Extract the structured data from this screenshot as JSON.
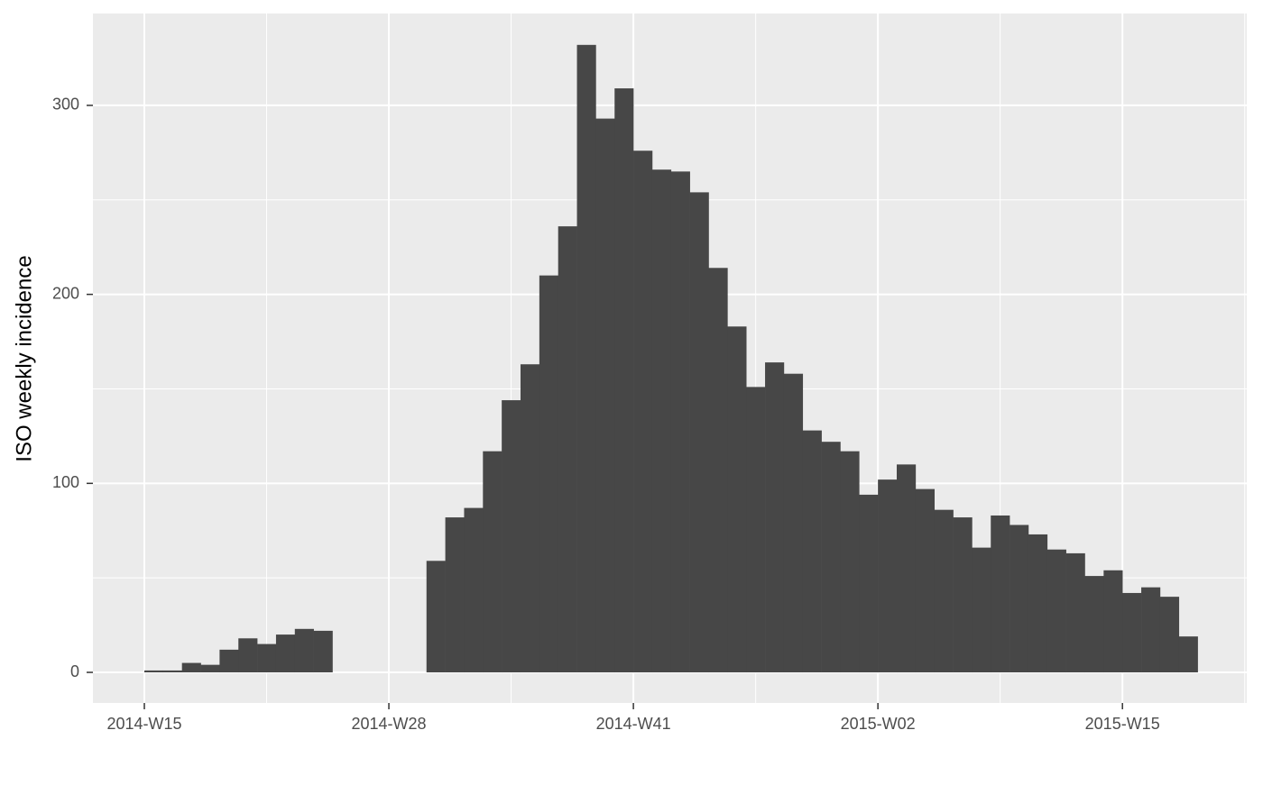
{
  "chart_data": {
    "type": "bar",
    "y_label": "ISO weekly incidence",
    "categories": [
      "2014-W15",
      null,
      null,
      null,
      null,
      null,
      null,
      null,
      null,
      null,
      null,
      null,
      null,
      "2014-W28",
      null,
      null,
      null,
      null,
      null,
      null,
      null,
      null,
      null,
      null,
      null,
      null,
      "2014-W41",
      null,
      null,
      null,
      null,
      null,
      null,
      null,
      null,
      null,
      null,
      null,
      null,
      "2015-W02",
      null,
      null,
      null,
      null,
      null,
      null,
      null,
      null,
      null,
      null,
      null,
      null,
      "2015-W15",
      null,
      null,
      null
    ],
    "values": [
      1,
      1,
      5,
      4,
      12,
      18,
      15,
      20,
      23,
      22,
      0,
      0,
      0,
      0,
      0,
      59,
      82,
      87,
      117,
      144,
      163,
      210,
      236,
      332,
      293,
      309,
      276,
      266,
      265,
      254,
      214,
      183,
      151,
      164,
      158,
      128,
      122,
      117,
      94,
      102,
      110,
      97,
      86,
      82,
      66,
      83,
      78,
      73,
      65,
      63,
      51,
      54,
      42,
      45,
      40,
      19
    ],
    "color": "#474747",
    "ylim": [
      -16.2,
      348.6
    ],
    "yticks": [
      0,
      100,
      200,
      300
    ],
    "grid": true
  }
}
